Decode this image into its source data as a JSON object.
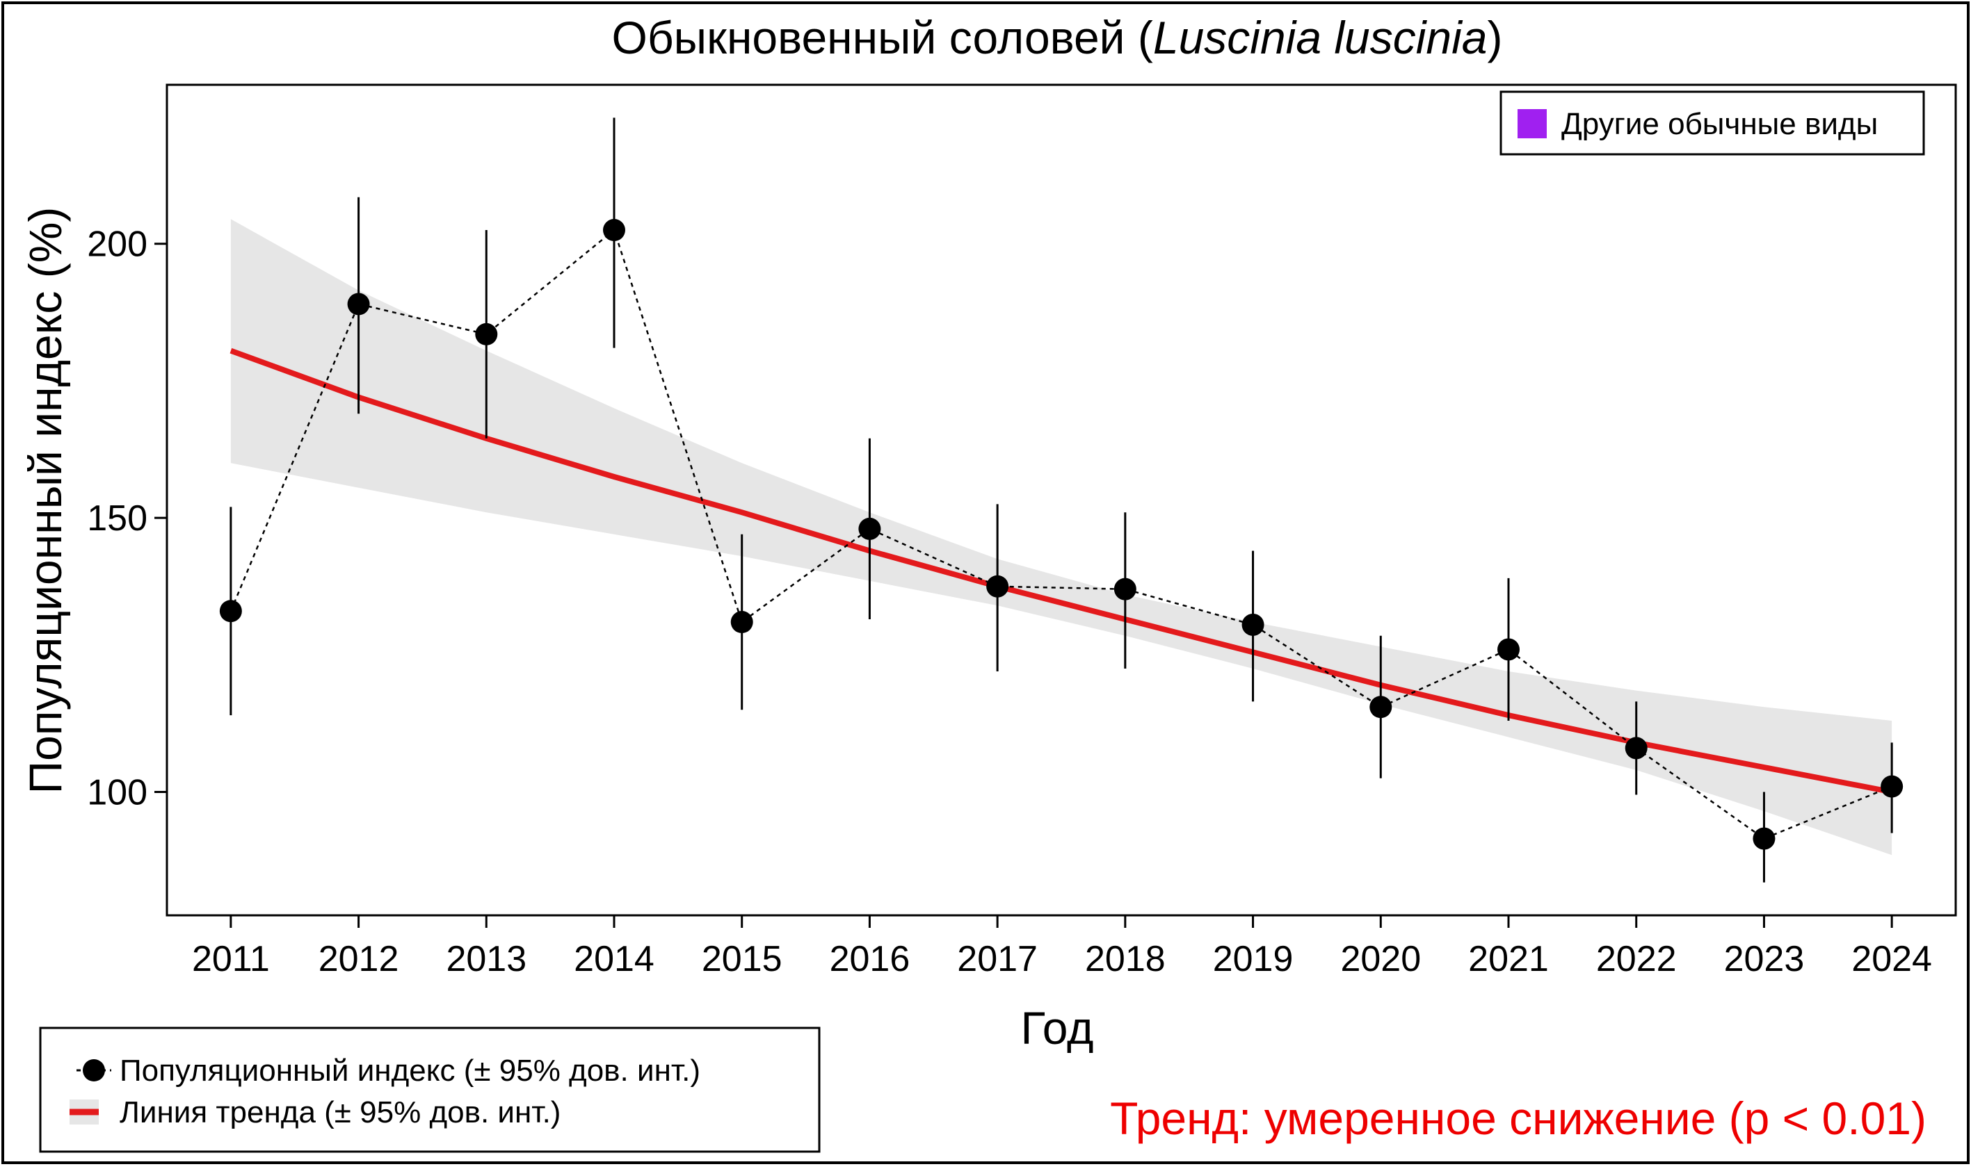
{
  "chart_data": {
    "type": "line",
    "title_prefix": "Обыкновенный соловей (",
    "title_species": "Luscinia luscinia",
    "title_suffix": ")",
    "xlabel": "Год",
    "ylabel": "Популяционный индекс (%)",
    "x": [
      2011,
      2012,
      2013,
      2014,
      2015,
      2016,
      2017,
      2018,
      2019,
      2020,
      2021,
      2022,
      2023,
      2024
    ],
    "xlim": [
      2010.5,
      2024.5
    ],
    "ylim": [
      77.5,
      229
    ],
    "yticks": [
      100,
      150,
      200
    ],
    "series": [
      {
        "name": "Популяционный индекс (± 95% дов. инт.)",
        "values": [
          133,
          189,
          183.5,
          202.5,
          131,
          148,
          137.5,
          137,
          130.5,
          115.5,
          126,
          108,
          91.5,
          101
        ],
        "ci_lower": [
          114,
          169,
          164.5,
          181,
          115,
          131.5,
          122,
          122.5,
          116.5,
          102.5,
          113,
          99.5,
          83.5,
          92.5
        ],
        "ci_upper": [
          152,
          208.5,
          202.5,
          223,
          147,
          164.5,
          152.5,
          151,
          144,
          128.5,
          139,
          116.5,
          100,
          109
        ],
        "color": "#000000"
      },
      {
        "name": "Линия тренда (± 95% дов. инт.)",
        "values": [
          180.5,
          172,
          164.5,
          157.5,
          151,
          144,
          137.5,
          131.5,
          125.5,
          119.5,
          114,
          109,
          104.5,
          100
        ],
        "ci_lower": [
          160,
          155.5,
          151,
          147,
          143,
          138.5,
          134,
          128.5,
          122.5,
          116,
          110,
          104,
          96.5,
          88.5
        ],
        "ci_upper": [
          204.5,
          191.5,
          180.5,
          170,
          160,
          151,
          142.5,
          136,
          131,
          126.5,
          122,
          118.5,
          115.5,
          113
        ],
        "color": "#e31a1c",
        "band_color": "#e6e6e6"
      }
    ],
    "legend": [
      {
        "label": "Популяционный индекс (± 95% дов. инт.)"
      },
      {
        "label": "Линия тренда (± 95% дов. инт.)"
      }
    ],
    "category_legend": {
      "label": "Другие обычные виды",
      "color": "#a020f0"
    },
    "trend_text": "Тренд: умеренное снижение (p < 0.01)",
    "trend_color": "#ee0000"
  }
}
